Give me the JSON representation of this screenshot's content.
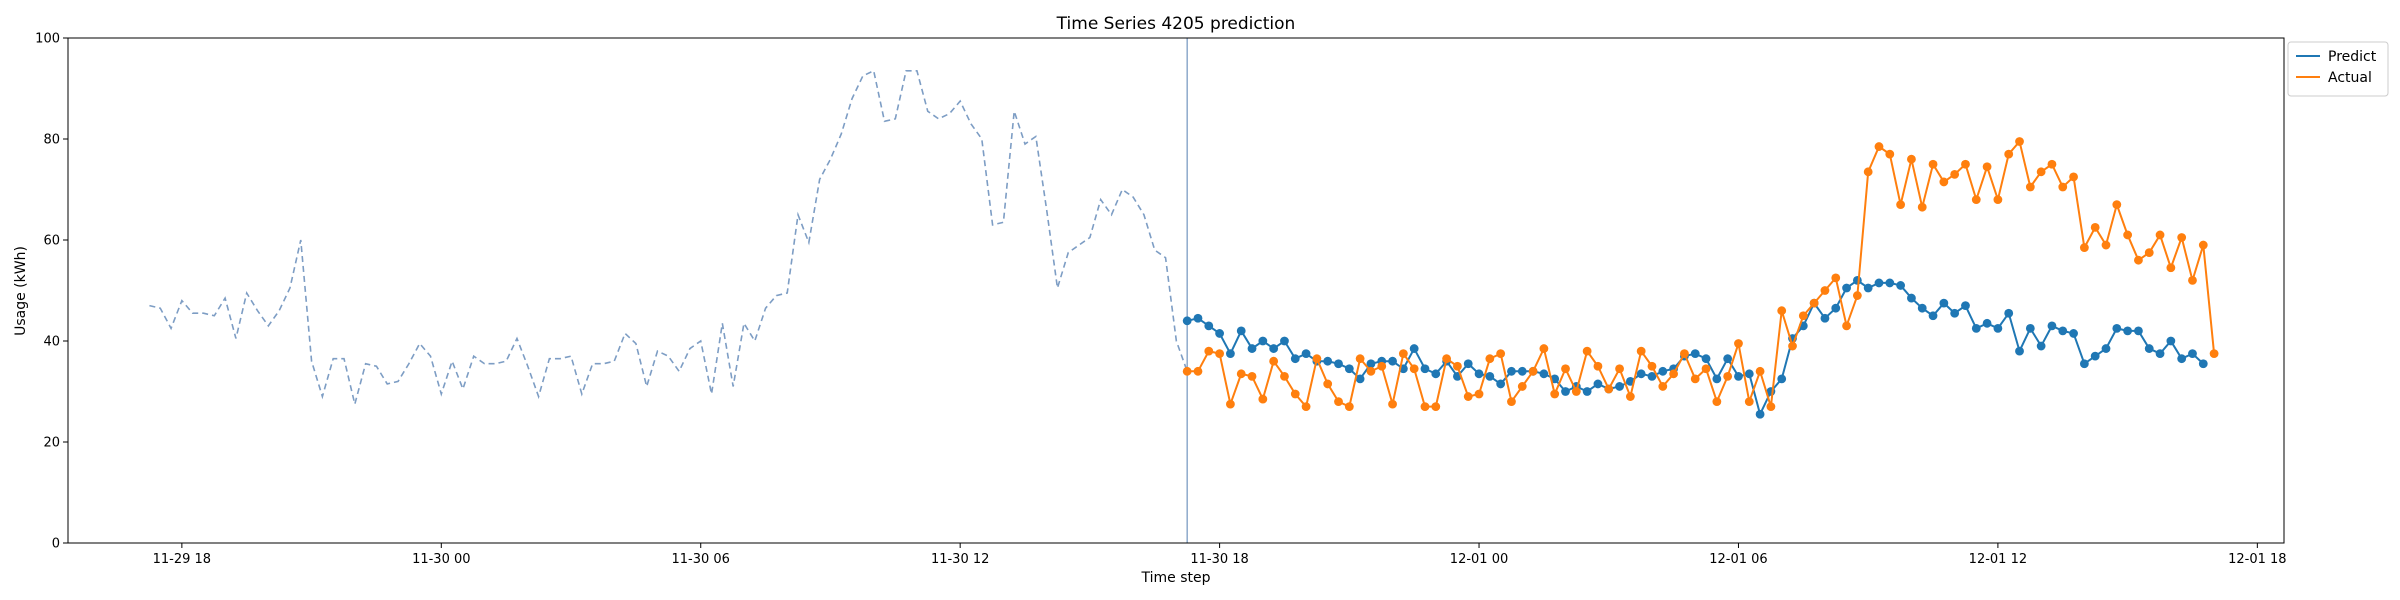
{
  "chart_data": {
    "type": "line",
    "title": "Time Series 4205 prediction",
    "xlabel": "Time step",
    "ylabel": "Usage (kWh)",
    "ylim": [
      0,
      100
    ],
    "xlim": [
      "2025-11-29 15:22",
      "2025-12-01 18:37"
    ],
    "x_ticks": [
      {
        "value": "2025-11-29 18:00",
        "label": "11-29 18"
      },
      {
        "value": "2025-11-30 00:00",
        "label": "11-30 00"
      },
      {
        "value": "2025-11-30 06:00",
        "label": "11-30 06"
      },
      {
        "value": "2025-11-30 12:00",
        "label": "11-30 12"
      },
      {
        "value": "2025-11-30 18:00",
        "label": "11-30 18"
      },
      {
        "value": "2025-12-01 00:00",
        "label": "12-01 00"
      },
      {
        "value": "2025-12-01 06:00",
        "label": "12-01 06"
      },
      {
        "value": "2025-12-01 12:00",
        "label": "12-01 12"
      },
      {
        "value": "2025-12-01 18:00",
        "label": "12-01 18"
      }
    ],
    "y_ticks": [
      0,
      20,
      40,
      60,
      80,
      100
    ],
    "grid": false,
    "legend_position": "upper-right-outside",
    "forecast_start": "2025-11-30 17:15",
    "history": {
      "start": "2025-11-29 17:15",
      "step_minutes": 15,
      "color": "#7d9dc4",
      "style": "dashed",
      "values": [
        47,
        46.5,
        42.5,
        48,
        45.5,
        45.5,
        45,
        48.5,
        40.5,
        49.5,
        46,
        43,
        46,
        50.5,
        60,
        36,
        29,
        36.5,
        36.5,
        27.5,
        35.5,
        35,
        31.5,
        32,
        35.5,
        39.5,
        37,
        29.5,
        36,
        30.5,
        37,
        35.5,
        35.5,
        36,
        40.5,
        35,
        29,
        36.5,
        36.5,
        37,
        29.5,
        35.5,
        35.5,
        36,
        41.5,
        39.5,
        31,
        38,
        37,
        34,
        38.5,
        40,
        29.5,
        43.5,
        31,
        43.5,
        40,
        46.5,
        49,
        49.5,
        65,
        59.5,
        72,
        76,
        81,
        88,
        92.5,
        93.5,
        83.5,
        84,
        93.5,
        93.5,
        85.5,
        84,
        85,
        87.5,
        83,
        80,
        63,
        63.5,
        85.5,
        79,
        80.5,
        66,
        50.5,
        57.5,
        59,
        60.5,
        68,
        65,
        70,
        68.5,
        65,
        58,
        56.5,
        40,
        34
      ]
    },
    "series": [
      {
        "name": "Predict",
        "color": "#1f77b4",
        "start": "2025-11-30 17:15",
        "step_minutes": 15,
        "values": [
          44,
          44.5,
          43,
          41.5,
          37.5,
          42,
          38.5,
          40,
          38.5,
          40,
          36.5,
          37.5,
          36,
          36,
          35.5,
          34.5,
          32.5,
          35.5,
          36,
          36,
          34.5,
          38.5,
          34.5,
          33.5,
          36,
          33,
          35.5,
          33.5,
          33,
          31.5,
          34,
          34,
          34,
          33.5,
          32.5,
          30,
          31,
          30,
          31.5,
          30.5,
          31,
          32,
          33.5,
          33,
          34,
          34.5,
          37,
          37.5,
          36.5,
          32.5,
          36.5,
          33,
          33.5,
          25.5,
          30,
          32.5,
          40.5,
          43,
          47.5,
          44.5,
          46.5,
          50.5,
          52,
          50.5,
          51.5,
          51.5,
          51,
          48.5,
          46.5,
          45,
          47.5,
          45.5,
          47,
          42.5,
          43.5,
          42.5,
          45.5,
          38,
          42.5,
          39,
          43,
          42,
          41.5,
          35.5,
          37,
          38.5,
          42.5,
          42,
          42,
          38.5,
          37.5,
          40,
          36.5,
          37.5,
          35.5
        ]
      },
      {
        "name": "Actual",
        "color": "#ff7f0e",
        "start": "2025-11-30 17:15",
        "step_minutes": 15,
        "values": [
          34,
          34,
          38,
          37.5,
          27.5,
          33.5,
          33,
          28.5,
          36,
          33,
          29.5,
          27,
          36.5,
          31.5,
          28,
          27,
          36.5,
          34,
          35,
          27.5,
          37.5,
          34.5,
          27,
          27,
          36.5,
          35,
          29,
          29.5,
          36.5,
          37.5,
          28,
          31,
          34,
          38.5,
          29.5,
          34.5,
          30,
          38,
          35,
          30.5,
          34.5,
          29,
          38,
          35,
          31,
          33.5,
          37.5,
          32.5,
          34.5,
          28,
          33,
          39.5,
          28,
          34,
          27,
          46,
          39,
          45,
          47.5,
          50,
          52.5,
          43,
          49,
          73.5,
          78.5,
          77,
          67,
          76,
          66.5,
          75,
          71.5,
          73,
          75,
          68,
          74.5,
          68,
          77,
          79.5,
          70.5,
          73.5,
          75,
          70.5,
          72.5,
          58.5,
          62.5,
          59,
          67,
          61,
          56,
          57.5,
          61,
          54.5,
          60.5,
          52,
          59,
          37.5
        ]
      }
    ]
  }
}
